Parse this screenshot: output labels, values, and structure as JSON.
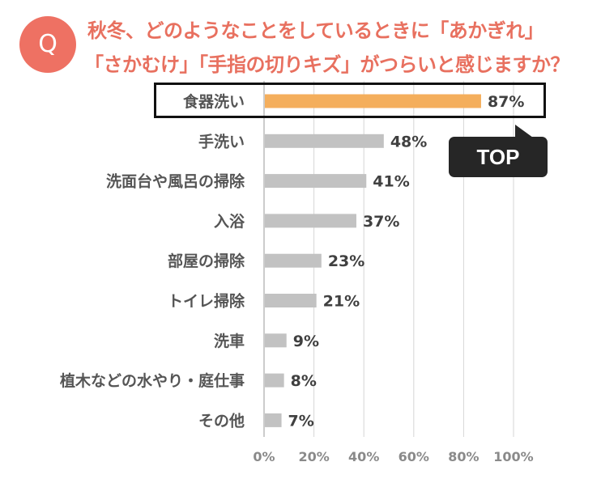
{
  "badge": "Q",
  "title_line1": "秋冬、どのようなことをしているときに「あかぎれ」",
  "title_line2": "「さかむけ」「手指の切りキズ」がつらいと感じますか？",
  "callout": "TOP",
  "colors": {
    "accent": "#ee7163",
    "title": "#e8705f",
    "highlight_bar": "#f4ae5c",
    "bar": "#c2c2c2",
    "callout_bg": "#262626"
  },
  "chart_data": {
    "type": "bar",
    "orientation": "horizontal",
    "title": "秋冬、どのようなことをしているときに「あかぎれ」「さかむけ」「手指の切りキズ」がつらいと感じますか？",
    "categories": [
      "食器洗い",
      "手洗い",
      "洗面台や風呂の掃除",
      "入浴",
      "部屋の掃除",
      "トイレ掃除",
      "洗車",
      "植木などの水やり・庭仕事",
      "その他"
    ],
    "values": [
      87,
      48,
      41,
      37,
      23,
      21,
      9,
      8,
      7
    ],
    "value_labels": [
      "87%",
      "48%",
      "41%",
      "37%",
      "23%",
      "21%",
      "9%",
      "8%",
      "7%"
    ],
    "xlim": [
      0,
      100
    ],
    "xticks": [
      "0%",
      "20%",
      "40%",
      "60%",
      "80%",
      "100%"
    ],
    "highlight_index": 0,
    "grid": true,
    "xlabel": "",
    "ylabel": ""
  }
}
